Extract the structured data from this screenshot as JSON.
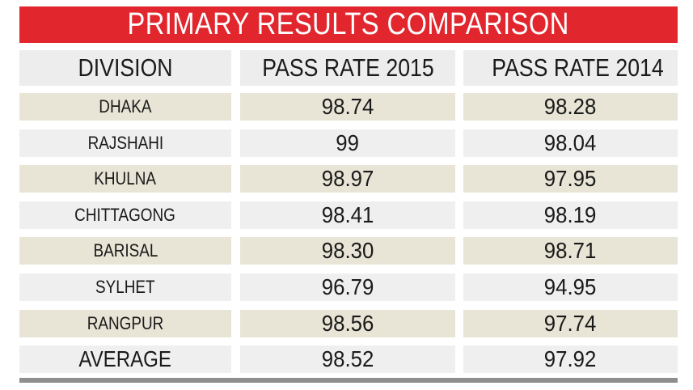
{
  "title": "PRIMARY RESULTS COMPARISON",
  "colors": {
    "title_bg": "#e1262d",
    "title_text": "#ffffff",
    "row_beige": "#e8e5d6",
    "row_grey": "#efefef",
    "header_bg": "#ededed",
    "rule": "#8e8e8e"
  },
  "chart_data": {
    "type": "table",
    "columns": [
      "DIVISION",
      "PASS RATE 2015",
      "PASS RATE 2014"
    ],
    "rows": [
      [
        "DHAKA",
        "98.74",
        "98.28"
      ],
      [
        "RAJSHAHI",
        "99",
        "98.04"
      ],
      [
        "KHULNA",
        "98.97",
        "97.95"
      ],
      [
        "CHITTAGONG",
        "98.41",
        "98.19"
      ],
      [
        "BARISAL",
        "98.30",
        "98.71"
      ],
      [
        "SYLHET",
        "96.79",
        "94.95"
      ],
      [
        "RANGPUR",
        "98.56",
        "97.74"
      ],
      [
        "AVERAGE",
        "98.52",
        "97.92"
      ]
    ]
  }
}
